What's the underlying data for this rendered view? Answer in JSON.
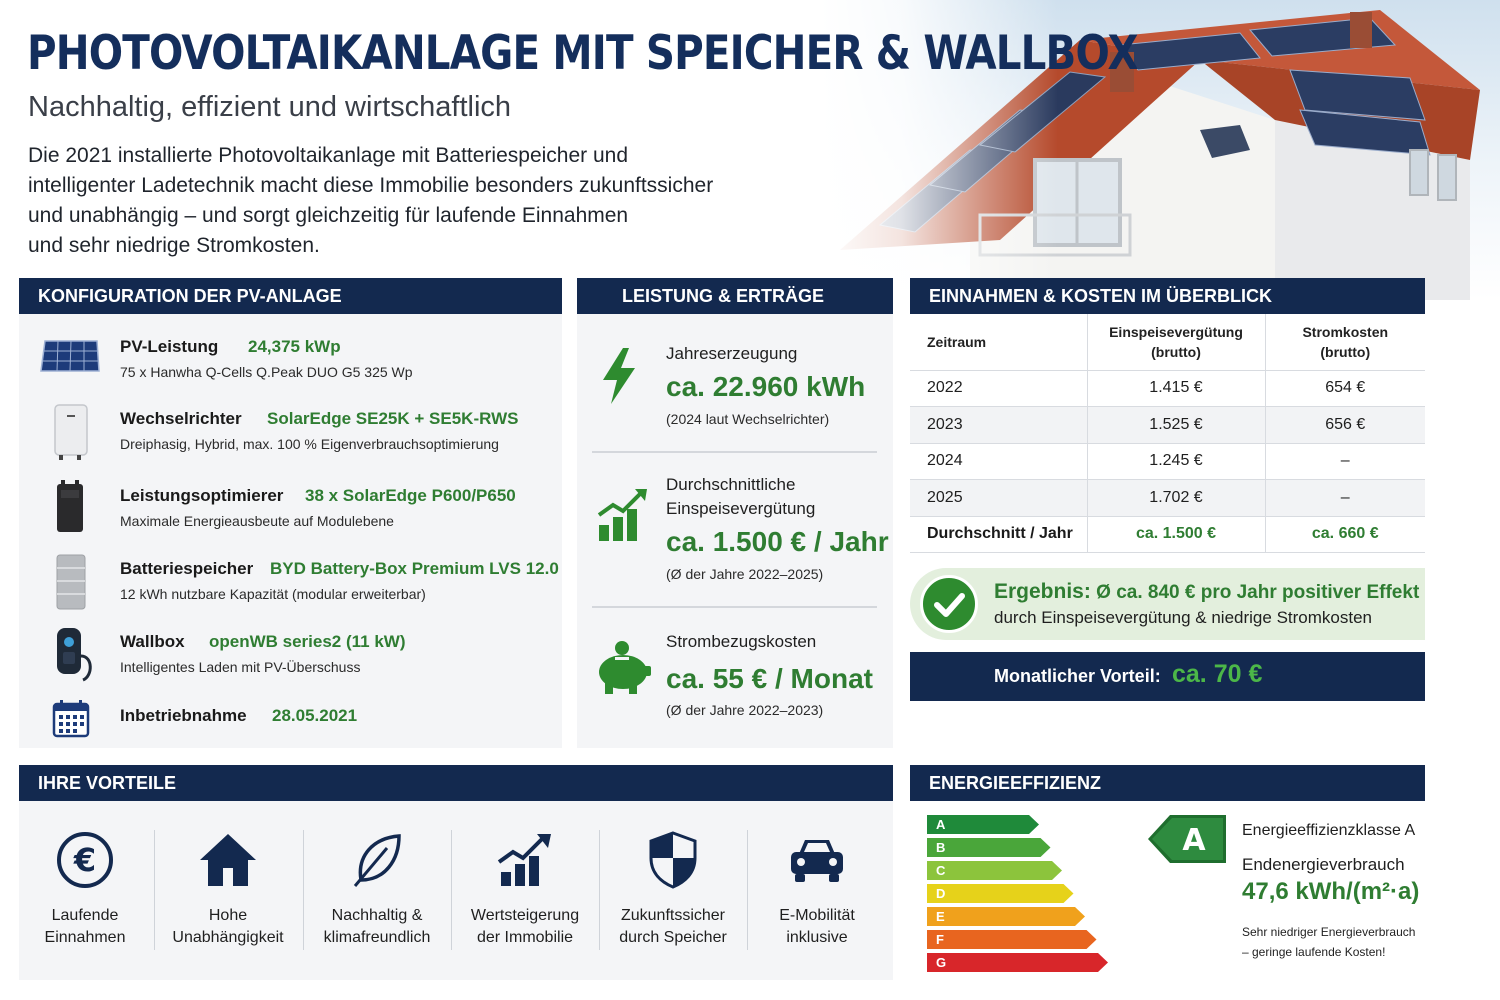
{
  "header": {
    "title": "PHOTOVOLTAIKANLAGE MIT SPEICHER & WALLBOX",
    "subtitle": "Nachhaltig, effizient und wirtschaftlich",
    "intro_lines": [
      "Die 2021 installierte Photovoltaikanlage mit Batteriespeicher und",
      "intelligenter Ladetechnik macht diese Immobilie besonders zukunftssicher",
      "und unabhängig – und sorgt gleichzeitig für laufende Einnahmen",
      "und sehr niedrige Stromkosten."
    ]
  },
  "config": {
    "heading": "KONFIGURATION DER PV-ANLAGE",
    "items": [
      {
        "icon": "solar-panel-icon",
        "name": "PV-Leistung",
        "value": "24,375 kWp",
        "desc": "75 x Hanwha Q-Cells Q.Peak DUO G5 325 Wp"
      },
      {
        "icon": "inverter-icon",
        "name": "Wechselrichter",
        "value": "SolarEdge SE25K + SE5K-RWS",
        "desc": "Dreiphasig, Hybrid, max. 100 % Eigenverbrauchsoptimierung"
      },
      {
        "icon": "optimizer-icon",
        "name": "Leistungsoptimierer",
        "value": "38 x SolarEdge P600/P650",
        "desc": "Maximale Energieausbeute auf Modulebene"
      },
      {
        "icon": "battery-icon",
        "name": "Batteriespeicher",
        "value": "BYD Battery-Box Premium LVS 12.0",
        "desc": "12 kWh nutzbare Kapazität (modular erweiterbar)"
      },
      {
        "icon": "wallbox-icon",
        "name": "Wallbox",
        "value": "openWB series2 (11 kW)",
        "desc": "Intelligentes Laden mit PV-Überschuss"
      },
      {
        "icon": "calendar-icon",
        "name": "Inbetriebnahme",
        "value": "28.05.2021",
        "desc": ""
      }
    ]
  },
  "performance": {
    "heading": "LEISTUNG & ERTRÄGE",
    "items": [
      {
        "icon": "lightning-icon",
        "label": "Jahreserzeugung",
        "label2": "",
        "value": "ca. 22.960 kWh",
        "note": "(2024 laut Wechselrichter)"
      },
      {
        "icon": "growth-chart-icon",
        "label": "Durchschnittliche",
        "label2": "Einspeisevergütung",
        "value": "ca. 1.500 € / Jahr",
        "note": "(Ø der Jahre 2022–2025)"
      },
      {
        "icon": "piggy-bank-icon",
        "label": "Strombezugskosten",
        "label2": "",
        "value": "ca. 55 € / Monat",
        "note": "(Ø der Jahre 2022–2023)"
      }
    ]
  },
  "finance": {
    "heading": "EINNAHMEN & KOSTEN IM ÜBERBLICK",
    "columns": [
      "Zeitraum",
      "Einspeisevergütung",
      "(brutto)",
      "Stromkosten",
      "(brutto)"
    ],
    "rows": [
      [
        "2022",
        "1.415 €",
        "654 €"
      ],
      [
        "2023",
        "1.525 €",
        "656 €"
      ],
      [
        "2024",
        "1.245 €",
        "–"
      ],
      [
        "2025",
        "1.702 €",
        "–"
      ],
      [
        "Durchschnitt / Jahr",
        "ca. 1.500 €",
        "ca. 660 €"
      ]
    ],
    "result_label": "Ergebnis:",
    "result_text": "Ø ca. 840 € pro Jahr positiver Effekt",
    "result_line2": "durch Einspeisevergütung & niedrige Stromkosten",
    "monthly_label": "Monatlicher Vorteil:",
    "monthly_value": "ca. 70 €"
  },
  "advantages": {
    "heading": "IHRE VORTEILE",
    "items": [
      {
        "icon": "euro-icon",
        "line1": "Laufende",
        "line2": "Einnahmen"
      },
      {
        "icon": "house-icon",
        "line1": "Hohe",
        "line2": "Unabhängigkeit"
      },
      {
        "icon": "leaf-icon",
        "line1": "Nachhaltig &",
        "line2": "klimafreundlich"
      },
      {
        "icon": "growth-chart-icon",
        "line1": "Wertsteigerung",
        "line2": "der Immobilie"
      },
      {
        "icon": "shield-icon",
        "line1": "Zukunftssicher",
        "line2": "durch Speicher"
      },
      {
        "icon": "car-icon",
        "line1": "E-Mobilität",
        "line2": "inklusive"
      }
    ]
  },
  "energy": {
    "heading": "ENERGIEEFFIZIENZ",
    "scale": [
      {
        "letter": "A",
        "color": "#1f8a3a"
      },
      {
        "letter": "B",
        "color": "#4aa63a"
      },
      {
        "letter": "C",
        "color": "#8cc43c"
      },
      {
        "letter": "D",
        "color": "#e6d21a"
      },
      {
        "letter": "E",
        "color": "#f0a11c"
      },
      {
        "letter": "F",
        "color": "#e8651f"
      },
      {
        "letter": "G",
        "color": "#d8262a"
      }
    ],
    "class": "A",
    "class_label": "Energieeffizienzklasse A",
    "consumption_label": "Endenergieverbrauch",
    "consumption_value": "47,6 kWh/(m²·a)",
    "note_line1": "Sehr niedriger Energieverbrauch",
    "note_line2": "– geringe laufende Kosten!"
  }
}
